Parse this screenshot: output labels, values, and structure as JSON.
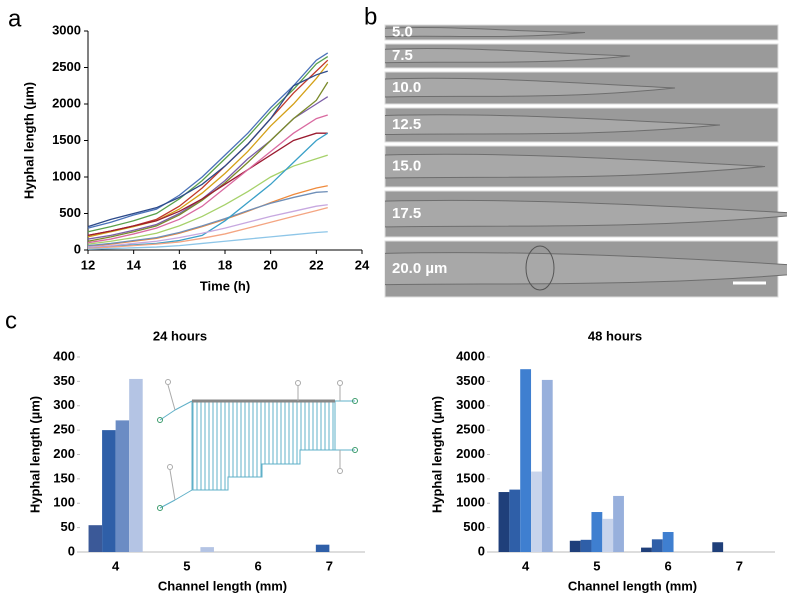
{
  "panel_labels": [
    "a",
    "b",
    "c"
  ],
  "images": {
    "labels": [
      "5.0",
      "7.5",
      "10.0",
      "12.5",
      "15.0",
      "17.5",
      "20.0 µm"
    ]
  },
  "chart_data": [
    {
      "type": "line",
      "xlabel": "Time (h)",
      "ylabel": "Hyphal length (µm)",
      "x": [
        12,
        13,
        14,
        15,
        16,
        17,
        18,
        19,
        20,
        21,
        22,
        22.5
      ],
      "xlim": [
        12,
        24
      ],
      "xticks": [
        12,
        14,
        16,
        18,
        20,
        22,
        24
      ],
      "ylim": [
        0,
        3000
      ],
      "yticks": [
        0,
        500,
        1000,
        1500,
        2000,
        2500,
        3000
      ],
      "series": [
        {
          "color": "#4a72b8",
          "values": [
            300,
            380,
            480,
            560,
            750,
            1000,
            1300,
            1600,
            1950,
            2250,
            2600,
            2700
          ]
        },
        {
          "color": "#5aa04a",
          "values": [
            250,
            320,
            400,
            500,
            700,
            950,
            1250,
            1550,
            1900,
            2200,
            2550,
            2650
          ]
        },
        {
          "color": "#c0392b",
          "values": [
            200,
            260,
            330,
            420,
            600,
            850,
            1150,
            1450,
            1800,
            2150,
            2450,
            2600
          ]
        },
        {
          "color": "#d4a017",
          "values": [
            180,
            250,
            320,
            400,
            560,
            780,
            1050,
            1350,
            1700,
            2000,
            2350,
            2550
          ]
        },
        {
          "color": "#2c4a8a",
          "values": [
            320,
            420,
            500,
            580,
            720,
            900,
            1150,
            1450,
            1800,
            2250,
            2400,
            2450
          ]
        },
        {
          "color": "#7b5ea7",
          "values": [
            150,
            200,
            270,
            350,
            500,
            700,
            950,
            1250,
            1500,
            1800,
            2000,
            2100
          ]
        },
        {
          "color": "#7a8a2a",
          "values": [
            120,
            180,
            250,
            330,
            480,
            680,
            920,
            1200,
            1500,
            1800,
            2050,
            2300
          ]
        },
        {
          "color": "#9b1b30",
          "values": [
            200,
            260,
            330,
            400,
            530,
            700,
            900,
            1100,
            1300,
            1500,
            1600,
            1600
          ]
        },
        {
          "color": "#d96aa0",
          "values": [
            100,
            150,
            220,
            300,
            420,
            600,
            850,
            1100,
            1350,
            1600,
            1800,
            1850
          ]
        },
        {
          "color": "#a6d16a",
          "values": [
            80,
            120,
            170,
            230,
            330,
            460,
            620,
            800,
            1000,
            1150,
            1250,
            1300
          ]
        },
        {
          "color": "#ef8a3c",
          "values": [
            50,
            80,
            120,
            160,
            230,
            320,
            420,
            530,
            650,
            760,
            850,
            880
          ]
        },
        {
          "color": "#6f8fb8",
          "values": [
            60,
            90,
            130,
            170,
            240,
            330,
            430,
            540,
            640,
            720,
            790,
            800
          ]
        },
        {
          "color": "#3aa0c8",
          "values": [
            30,
            50,
            70,
            90,
            130,
            200,
            400,
            650,
            900,
            1200,
            1500,
            1600
          ]
        },
        {
          "color": "#f4a582",
          "values": [
            20,
            40,
            60,
            80,
            110,
            160,
            220,
            300,
            380,
            460,
            540,
            580
          ]
        },
        {
          "color": "#8ec6e8",
          "values": [
            10,
            20,
            30,
            40,
            60,
            90,
            120,
            150,
            180,
            210,
            240,
            250
          ]
        },
        {
          "color": "#c7a8e0",
          "values": [
            40,
            60,
            90,
            120,
            170,
            230,
            300,
            380,
            460,
            530,
            600,
            620
          ]
        }
      ]
    },
    {
      "type": "bar",
      "title": "24 hours",
      "xlabel": "Channel length (mm)",
      "ylabel": "Hyphal length (µm)",
      "categories": [
        "4",
        "5",
        "6",
        "7"
      ],
      "ylim": [
        0,
        400
      ],
      "yticks": [
        0,
        50,
        100,
        150,
        200,
        250,
        300,
        350,
        400
      ],
      "series": [
        {
          "color": "#3b5998",
          "values": [
            55,
            0,
            0,
            0
          ]
        },
        {
          "color": "#2f5fa8",
          "values": [
            250,
            0,
            0,
            15
          ]
        },
        {
          "color": "#6b8cc4",
          "values": [
            270,
            0,
            0,
            0
          ]
        },
        {
          "color": "#b4c4e4",
          "values": [
            355,
            10,
            0,
            0
          ]
        }
      ]
    },
    {
      "type": "bar",
      "title": "48 hours",
      "xlabel": "Channel length (mm)",
      "ylabel": "Hyphal length (µm)",
      "categories": [
        "4",
        "5",
        "6",
        "7"
      ],
      "ylim": [
        0,
        4000
      ],
      "yticks": [
        0,
        500,
        1000,
        1500,
        2000,
        2500,
        3000,
        3500,
        4000
      ],
      "series": [
        {
          "color": "#1f3f7a",
          "values": [
            1230,
            230,
            90,
            200
          ]
        },
        {
          "color": "#2f5fa8",
          "values": [
            1280,
            250,
            260,
            0
          ]
        },
        {
          "color": "#3f7fd0",
          "values": [
            3750,
            820,
            410,
            0
          ]
        },
        {
          "color": "#c8d4ec",
          "values": [
            1650,
            680,
            0,
            0
          ]
        },
        {
          "color": "#98b0dc",
          "values": [
            3530,
            1150,
            0,
            0
          ]
        }
      ]
    }
  ]
}
